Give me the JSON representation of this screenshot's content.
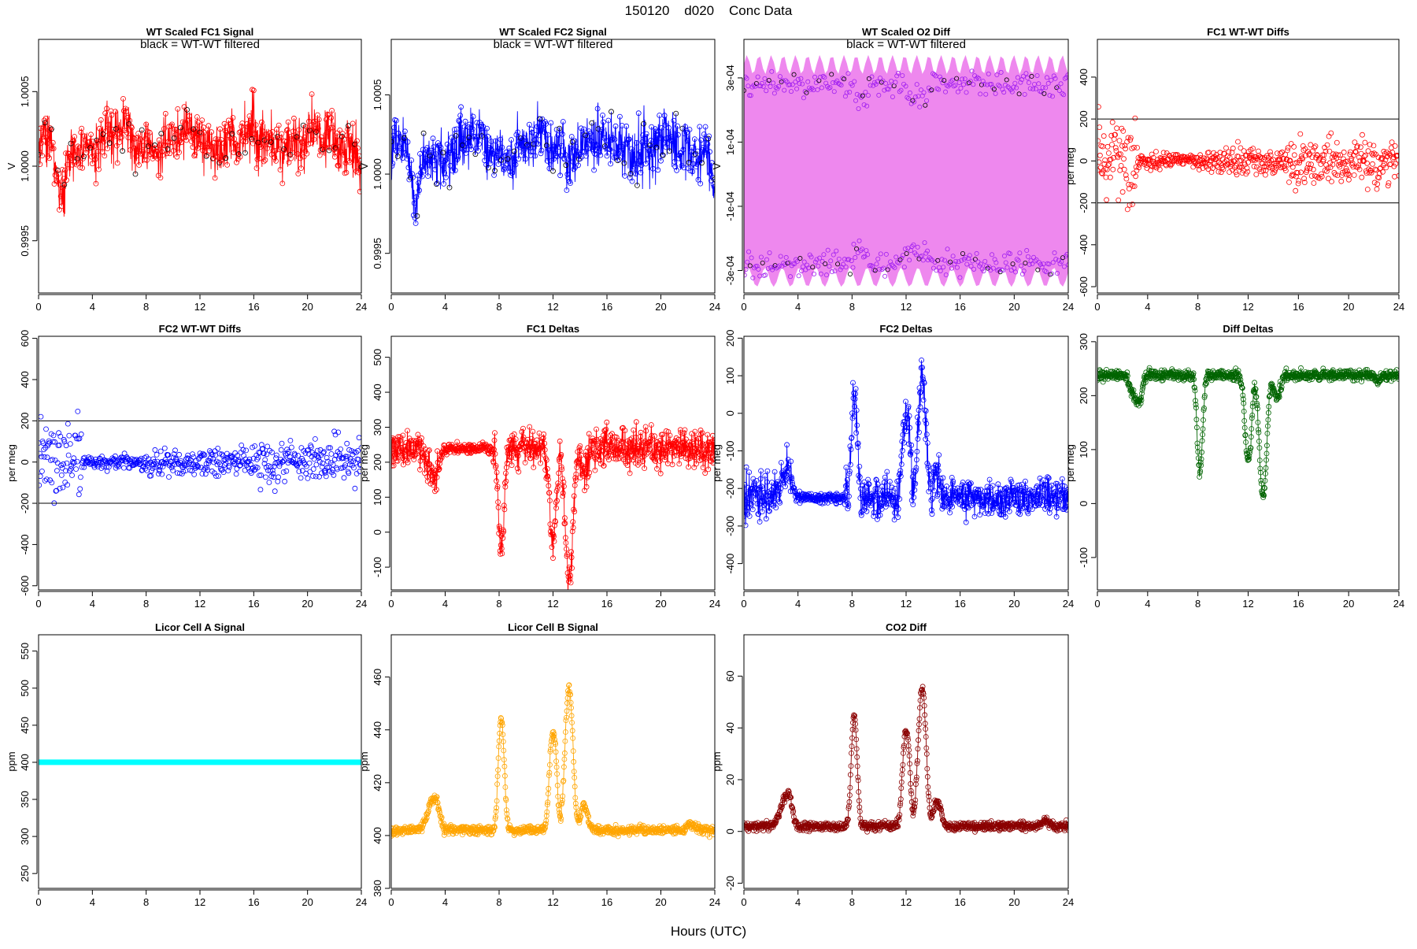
{
  "page": {
    "title": "150120    d020    Conc Data",
    "xlabel": "Hours (UTC)"
  },
  "chart_data": [
    {
      "id": "fc1",
      "type": "scatter",
      "title": "WT Scaled FC1 Signal",
      "annotation": "black = WT-WT filtered",
      "ylabel": "V",
      "color": "#ff0000",
      "lines": true,
      "xlim": [
        0,
        24
      ],
      "ylim": [
        0.99915,
        1.00085
      ],
      "yticks": [
        0.9995,
        1.0,
        1.0005
      ],
      "ytick_labels": [
        "0.9995",
        "1.0000",
        "1.0005"
      ],
      "ytick_rotated": true,
      "xticks": [
        0,
        4,
        8,
        12,
        16,
        20,
        24
      ],
      "gen": "fc1",
      "style": "dense-line-points",
      "hlines": []
    },
    {
      "id": "fc2",
      "type": "scatter",
      "title": "WT Scaled FC2 Signal",
      "annotation": "black = WT-WT filtered",
      "ylabel": "V",
      "color": "#0000ff",
      "lines": true,
      "xlim": [
        0,
        24
      ],
      "ylim": [
        0.99925,
        1.00085
      ],
      "yticks": [
        0.9995,
        1.0,
        1.0005
      ],
      "ytick_labels": [
        "0.9995",
        "1.0000",
        "1.0005"
      ],
      "ytick_rotated": true,
      "xticks": [
        0,
        4,
        8,
        12,
        16,
        20,
        24
      ],
      "gen": "fc2",
      "style": "dense-line-points",
      "hlines": []
    },
    {
      "id": "o2diff",
      "type": "scatter",
      "title": "WT Scaled O2 Diff",
      "annotation": "black = WT-WT filtered",
      "ylabel": "V",
      "color": "#ee82ee",
      "point_color": "#a020f0",
      "lines": true,
      "xlim": [
        0,
        24
      ],
      "ylim": [
        -0.00037,
        0.00042
      ],
      "yticks": [
        -0.0003,
        -0.0001,
        0.0001,
        0.0003
      ],
      "ytick_labels": [
        "-3e-04",
        "-1e-04",
        "1e-04",
        "3e-04"
      ],
      "ytick_rotated": true,
      "xticks": [
        0,
        4,
        8,
        12,
        16,
        20,
        24
      ],
      "gen": "o2",
      "style": "band",
      "hlines": []
    },
    {
      "id": "fc1wt",
      "type": "scatter",
      "title": "FC1 WT-WT Diffs",
      "annotation": "",
      "ylabel": "per meg",
      "color": "#ff0000",
      "lines": false,
      "xlim": [
        0,
        24
      ],
      "ylim": [
        -630,
        580
      ],
      "yticks": [
        -600,
        -400,
        -200,
        0,
        200,
        400
      ],
      "ytick_labels": [
        "-600",
        "-400",
        "-200",
        "0",
        "200",
        "400"
      ],
      "ytick_rotated": true,
      "xticks": [
        0,
        4,
        8,
        12,
        16,
        20,
        24
      ],
      "gen": "wt1",
      "style": "points",
      "hlines": [
        200,
        -200
      ]
    },
    {
      "id": "fc2wt",
      "type": "scatter",
      "title": "FC2 WT-WT Diffs",
      "annotation": "",
      "ylabel": "per meg",
      "color": "#0000ff",
      "lines": false,
      "xlim": [
        0,
        24
      ],
      "ylim": [
        -620,
        610
      ],
      "yticks": [
        -600,
        -400,
        -200,
        0,
        200,
        400,
        600
      ],
      "ytick_labels": [
        "-600",
        "-400",
        "-200",
        "0",
        "200",
        "400",
        "600"
      ],
      "ytick_rotated": true,
      "xticks": [
        0,
        4,
        8,
        12,
        16,
        20,
        24
      ],
      "gen": "wt2",
      "style": "points",
      "hlines": [
        200,
        -200
      ]
    },
    {
      "id": "fc1d",
      "type": "line",
      "title": "FC1 Deltas",
      "annotation": "",
      "ylabel": "per meg",
      "color": "#ff0000",
      "lines": true,
      "xlim": [
        0,
        24
      ],
      "ylim": [
        -165,
        560
      ],
      "yticks": [
        -100,
        0,
        100,
        200,
        300,
        400,
        500
      ],
      "ytick_labels": [
        "-100",
        "0",
        "100",
        "200",
        "300",
        "400",
        "500"
      ],
      "ytick_rotated": true,
      "xticks": [
        0,
        4,
        8,
        12,
        16,
        20,
        24
      ],
      "gen": "fc1d",
      "style": "line-points",
      "hlines": []
    },
    {
      "id": "fc2d",
      "type": "line",
      "title": "FC2 Deltas",
      "annotation": "",
      "ylabel": "per meg",
      "color": "#0000ff",
      "lines": true,
      "xlim": [
        0,
        24
      ],
      "ylim": [
        -470,
        205
      ],
      "yticks": [
        -400,
        -300,
        -200,
        -100,
        0,
        100,
        200
      ],
      "ytick_labels": [
        "-400",
        "-300",
        "-200",
        "-100",
        "0",
        "100",
        "200"
      ],
      "ytick_rotated": true,
      "xticks": [
        0,
        4,
        8,
        12,
        16,
        20,
        24
      ],
      "gen": "fc2d",
      "style": "line-points",
      "hlines": []
    },
    {
      "id": "diffd",
      "type": "line",
      "title": "Diff Deltas",
      "annotation": "",
      "ylabel": "per meg",
      "color": "#006400",
      "lines": true,
      "xlim": [
        0,
        24
      ],
      "ylim": [
        -160,
        310
      ],
      "yticks": [
        -100,
        0,
        100,
        200,
        300
      ],
      "ytick_labels": [
        "-100",
        "0",
        "100",
        "200",
        "300"
      ],
      "ytick_rotated": true,
      "xticks": [
        0,
        4,
        8,
        12,
        16,
        20,
        24
      ],
      "gen": "diffd",
      "style": "line-points",
      "hlines": []
    },
    {
      "id": "licA",
      "type": "line",
      "title": "Licor Cell A Signal",
      "annotation": "",
      "ylabel": "ppm",
      "color": "#00ffff",
      "lines": true,
      "xlim": [
        0,
        24
      ],
      "ylim": [
        230,
        572
      ],
      "yticks": [
        250,
        300,
        350,
        400,
        450,
        500,
        550
      ],
      "ytick_labels": [
        "250",
        "300",
        "350",
        "400",
        "450",
        "500",
        "550"
      ],
      "ytick_rotated": true,
      "xticks": [
        0,
        4,
        8,
        12,
        16,
        20,
        24
      ],
      "gen": "flat400",
      "style": "thick-line",
      "hlines": []
    },
    {
      "id": "licB",
      "type": "line",
      "title": "Licor Cell B Signal",
      "annotation": "",
      "ylabel": "ppm",
      "color": "#ffa500",
      "lines": true,
      "xlim": [
        0,
        24
      ],
      "ylim": [
        380,
        476
      ],
      "yticks": [
        380,
        400,
        420,
        440,
        460
      ],
      "ytick_labels": [
        "380",
        "400",
        "420",
        "440",
        "460"
      ],
      "ytick_rotated": true,
      "xticks": [
        0,
        4,
        8,
        12,
        16,
        20,
        24
      ],
      "gen": "licb",
      "style": "line-points",
      "hlines": []
    },
    {
      "id": "co2",
      "type": "line",
      "title": "CO2 Diff",
      "annotation": "",
      "ylabel": "ppm",
      "color": "#8b0000",
      "lines": true,
      "xlim": [
        0,
        24
      ],
      "ylim": [
        -22,
        76
      ],
      "yticks": [
        -20,
        0,
        20,
        40,
        60
      ],
      "ytick_labels": [
        "-20",
        "0",
        "20",
        "40",
        "60"
      ],
      "ytick_rotated": true,
      "xticks": [
        0,
        4,
        8,
        12,
        16,
        20,
        24
      ],
      "gen": "co2",
      "style": "line-points",
      "hlines": []
    }
  ]
}
